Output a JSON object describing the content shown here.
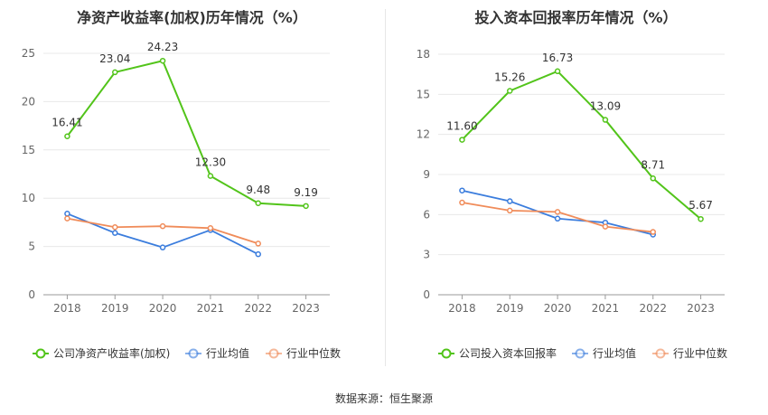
{
  "source_label": "数据来源：恒生聚源",
  "colors": {
    "main": "#52c41a",
    "avg": "#3b7ddd",
    "median": "#f08c5a"
  },
  "chart_data": [
    {
      "type": "line",
      "title": "净资产收益率(加权)历年情况（%）",
      "categories": [
        "2018",
        "2019",
        "2020",
        "2021",
        "2022",
        "2023"
      ],
      "ylim": [
        0,
        25
      ],
      "yticks": [
        0,
        5,
        10,
        15,
        20,
        25
      ],
      "grid": true,
      "legend_position": "bottom",
      "series": [
        {
          "name": "公司净资产收益率(加权)",
          "key": "main",
          "values": [
            16.41,
            23.04,
            24.23,
            12.3,
            9.48,
            9.19
          ],
          "labels": [
            "16.41",
            "23.04",
            "24.23",
            "12.30",
            "9.48",
            "9.19"
          ]
        },
        {
          "name": "行业均值",
          "key": "avg",
          "values": [
            8.4,
            6.4,
            4.9,
            6.7,
            4.2,
            null
          ]
        },
        {
          "name": "行业中位数",
          "key": "median",
          "values": [
            7.9,
            7.0,
            7.1,
            6.9,
            5.3,
            null
          ]
        }
      ]
    },
    {
      "type": "line",
      "title": "投入资本回报率历年情况（%）",
      "categories": [
        "2018",
        "2019",
        "2020",
        "2021",
        "2022",
        "2023"
      ],
      "ylim": [
        0,
        18
      ],
      "yticks": [
        0,
        3,
        6,
        9,
        12,
        15,
        18
      ],
      "grid": true,
      "legend_position": "bottom",
      "series": [
        {
          "name": "公司投入资本回报率",
          "key": "main",
          "values": [
            11.6,
            15.26,
            16.73,
            13.09,
            8.71,
            5.67
          ],
          "labels": [
            "11.60",
            "15.26",
            "16.73",
            "13.09",
            "8.71",
            "5.67"
          ]
        },
        {
          "name": "行业均值",
          "key": "avg",
          "values": [
            7.8,
            7.0,
            5.7,
            5.4,
            4.5,
            null
          ]
        },
        {
          "name": "行业中位数",
          "key": "median",
          "values": [
            6.9,
            6.3,
            6.2,
            5.1,
            4.7,
            null
          ]
        }
      ]
    }
  ]
}
